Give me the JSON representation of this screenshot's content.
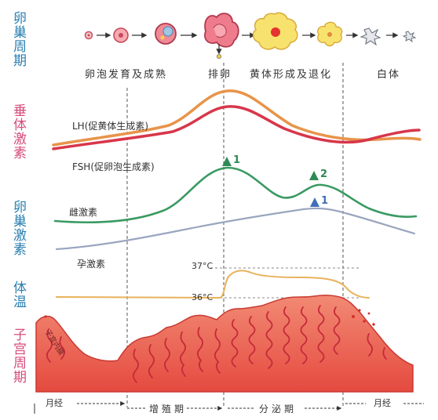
{
  "sections": {
    "ovary_cycle": "卵巢周期",
    "pituitary": "垂体激素",
    "ovarian_hormones": "卵巢激素",
    "body_temp": "体温",
    "uterine_cycle": "子宫周期"
  },
  "phases": {
    "follicle": "卵泡发育及成熟",
    "ovulation": "排卵",
    "corpus_luteum": "黄体形成及退化",
    "white_body": "白体"
  },
  "hormones": {
    "lh": "LH(促黄体生成素)",
    "fsh": "FSH(促卵泡生成素)",
    "estrogen": "雌激素",
    "progesterone": "孕激素"
  },
  "peaks": {
    "estrogen_peak1": "1",
    "estrogen_peak2": "2",
    "progesterone_peak1": "1"
  },
  "temperature": {
    "high": "37°C",
    "low": "36°C"
  },
  "uterus": {
    "label": "子宫内膜",
    "menses_start": "月经",
    "proliferative": "增殖期",
    "secretory": "分泌期",
    "menses_end": "月经"
  },
  "colors": {
    "lh": "#e8944a",
    "fsh": "#d8364a",
    "estrogen": "#3a9a62",
    "progesterone": "#9aa6bf",
    "temperature": "#e9b25c",
    "endometrium": "#e9604f",
    "section_blue": "#2a7fb0",
    "section_pink": "#d64b7a"
  }
}
